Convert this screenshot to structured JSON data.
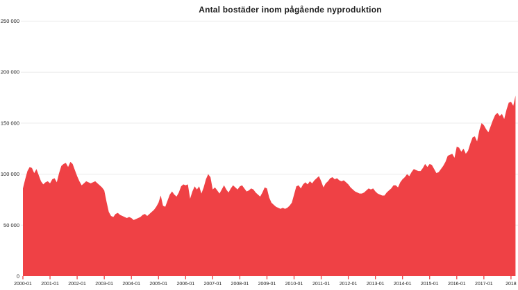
{
  "page": {
    "background": "#ffffff"
  },
  "chart_data": {
    "type": "area",
    "title": "Antal bostäder inom pågående nyproduktion",
    "series_name": "Antal bostäder inom pågående nyproduktion",
    "x_start": "2000-01",
    "x_frequency": "monthly",
    "xlabel": "",
    "ylabel": "",
    "ylim": [
      0,
      250000
    ],
    "grid": "horizontal",
    "legend_position": "none",
    "area_color": "#ef4145",
    "grid_color": "#e9e9e9",
    "text_color": "#1d1d1d",
    "y_ticks": [
      0,
      50000,
      100000,
      150000,
      200000,
      250000
    ],
    "y_tick_labels": [
      "0",
      "50 000",
      "100 000",
      "150 000",
      "200 000",
      "250 000"
    ],
    "x_tick_labels": [
      "2000-01",
      "2001-01",
      "2002-01",
      "2003-01",
      "2004-01",
      "2005-01",
      "2006-01",
      "2007-01",
      "2008-01",
      "2009-01",
      "2010-01",
      "2011-01",
      "2012-01",
      "2013-01",
      "2014-01",
      "2015-01",
      "2016-01",
      "2017-01",
      "2018"
    ],
    "values": [
      86000,
      95000,
      103000,
      107000,
      106000,
      101000,
      105000,
      99000,
      93000,
      90000,
      92000,
      93000,
      91000,
      95000,
      96000,
      92000,
      101000,
      108000,
      110000,
      111000,
      107000,
      112000,
      110000,
      104000,
      98000,
      93000,
      89000,
      91000,
      93000,
      92000,
      91000,
      92000,
      93000,
      91000,
      89000,
      87000,
      84000,
      73000,
      63000,
      59000,
      58000,
      61000,
      62000,
      60000,
      59000,
      58000,
      57000,
      58000,
      57000,
      55000,
      56000,
      57000,
      58000,
      60000,
      61000,
      59000,
      61000,
      63000,
      65000,
      68000,
      72000,
      79000,
      69000,
      68000,
      74000,
      80000,
      83000,
      80000,
      78000,
      82000,
      88000,
      90000,
      89000,
      90000,
      76000,
      83000,
      88000,
      85000,
      88000,
      81000,
      87000,
      95000,
      100000,
      97000,
      85000,
      87000,
      84000,
      81000,
      85000,
      89000,
      85000,
      82000,
      86000,
      89000,
      87000,
      85000,
      88000,
      89000,
      86000,
      83000,
      84000,
      86000,
      85000,
      82000,
      80000,
      78000,
      82000,
      87000,
      86000,
      77000,
      72000,
      70000,
      68000,
      67000,
      66000,
      67000,
      66000,
      67000,
      69000,
      72000,
      80000,
      88000,
      89000,
      86000,
      90000,
      92000,
      90000,
      93000,
      91000,
      94000,
      96000,
      98000,
      93000,
      87000,
      91000,
      93000,
      96000,
      97000,
      95000,
      96000,
      94000,
      93000,
      94000,
      92000,
      90000,
      87000,
      85000,
      83000,
      82000,
      81000,
      81000,
      82000,
      84000,
      86000,
      85000,
      86000,
      83000,
      81000,
      80000,
      79000,
      79000,
      82000,
      84000,
      86000,
      89000,
      89000,
      87000,
      92000,
      95000,
      97000,
      100000,
      98000,
      102000,
      105000,
      104000,
      103000,
      103000,
      106000,
      110000,
      107000,
      110000,
      109000,
      105000,
      101000,
      102000,
      105000,
      108000,
      112000,
      118000,
      119000,
      120000,
      116000,
      127000,
      126000,
      122000,
      125000,
      120000,
      123000,
      130000,
      136000,
      137000,
      132000,
      143000,
      150000,
      148000,
      144000,
      141000,
      147000,
      153000,
      158000,
      160000,
      157000,
      159000,
      154000,
      163000,
      170000,
      171000,
      167000,
      177000
    ]
  }
}
